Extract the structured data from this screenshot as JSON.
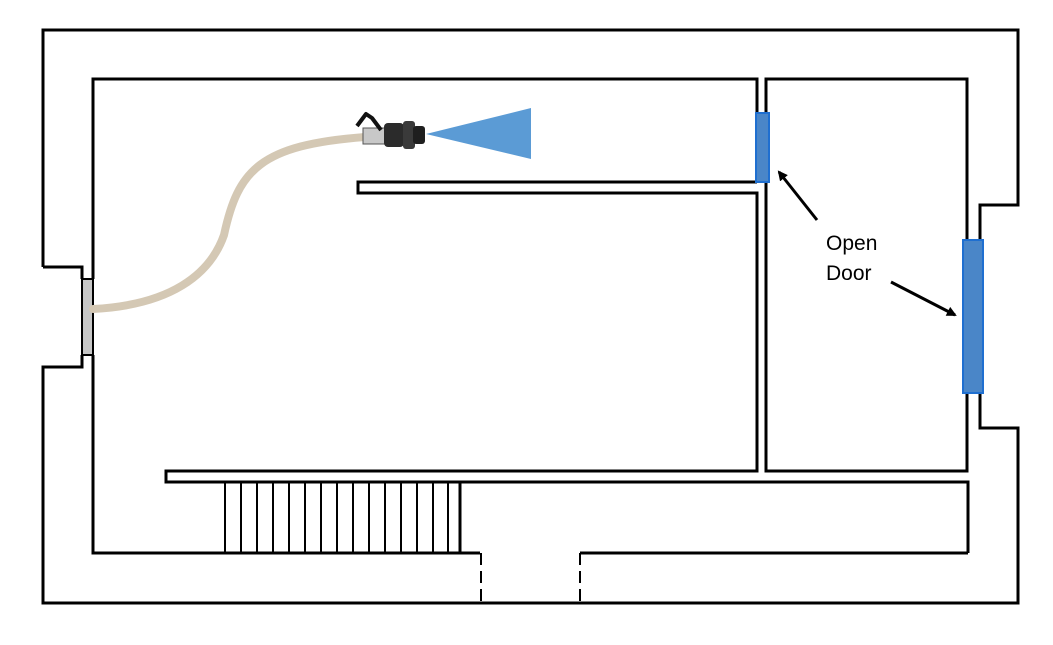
{
  "annotation": {
    "line1": "Open",
    "line2": "Door"
  },
  "colors": {
    "wall": "#000000",
    "door": "#4a86c8",
    "door_stroke": "#1f6fd0",
    "hose": "#d4c8b4",
    "inlet": "#c6c6c6",
    "spray": "#5b9bd5",
    "background": "#ffffff"
  },
  "icons": {
    "nozzle": "fire-hose-nozzle-icon",
    "spray": "water-spray-icon"
  }
}
